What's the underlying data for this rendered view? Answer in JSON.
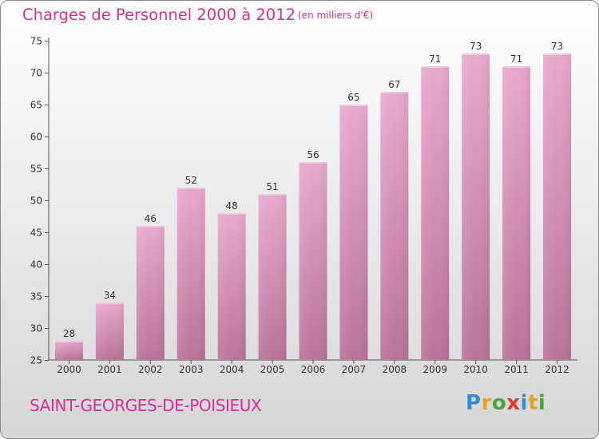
{
  "header": {
    "title": "Charges de Personnel 2000 à 2012",
    "subtitle": "(en milliers d'€)"
  },
  "footer": {
    "commune": "SAINT-GEORGES-DE-POISIEUX",
    "logo_letters": [
      {
        "char": "P",
        "color": "#2f8fd3"
      },
      {
        "char": "r",
        "color": "#e8a021"
      },
      {
        "char": "o",
        "color": "#4aa63c"
      },
      {
        "char": "x",
        "color": "#e03a2f"
      },
      {
        "char": "i",
        "color": "#2f8fd3"
      },
      {
        "char": "t",
        "color": "#e8a021"
      },
      {
        "char": "i",
        "color": "#4aa63c"
      }
    ]
  },
  "colors": {
    "bar_top": "#e7a9cd",
    "bar_bottom": "#b87399",
    "accent": "#d5318f"
  },
  "chart_data": {
    "type": "bar",
    "categories": [
      "2000",
      "2001",
      "2002",
      "2003",
      "2004",
      "2005",
      "2006",
      "2007",
      "2008",
      "2009",
      "2010",
      "2011",
      "2012"
    ],
    "values": [
      28,
      34,
      46,
      52,
      48,
      51,
      56,
      65,
      67,
      71,
      73,
      71,
      73
    ],
    "title": "Charges de Personnel 2000 à 2012",
    "xlabel": "",
    "ylabel": "",
    "ylim": [
      25,
      75
    ],
    "yticks": [
      25,
      30,
      35,
      40,
      45,
      50,
      55,
      60,
      65,
      70,
      75
    ],
    "grid": false,
    "data_labels": true
  }
}
